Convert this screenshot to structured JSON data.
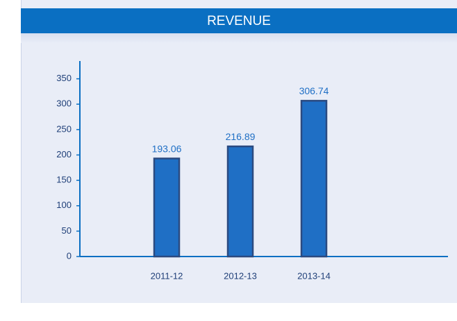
{
  "chart_data": {
    "type": "bar",
    "title": "REVENUE",
    "categories": [
      "2011-12",
      "2012-13",
      "2013-14"
    ],
    "values": [
      193.06,
      216.89,
      306.74
    ],
    "color": "#1f6fc5",
    "ylim": [
      0,
      385
    ],
    "yticks": [
      0,
      50,
      100,
      150,
      200,
      250,
      300,
      350
    ]
  }
}
